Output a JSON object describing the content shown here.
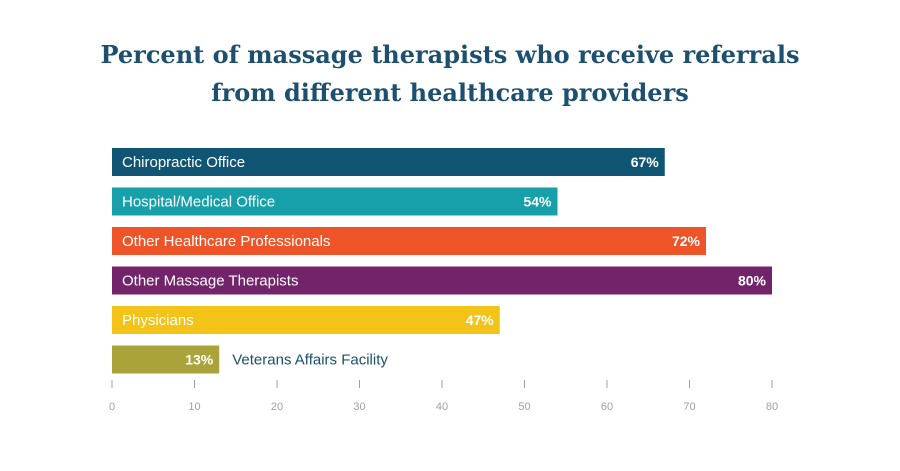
{
  "chart_data": {
    "type": "bar",
    "orientation": "horizontal",
    "title_lines": [
      "Percent of massage therapists who receive referrals",
      "from different healthcare providers"
    ],
    "categories": [
      "Chiropractic Office",
      "Hospital/Medical Office",
      "Other Healthcare Professionals",
      "Other Massage Therapists",
      "Physicians",
      "Veterans Affairs Facility"
    ],
    "values": [
      67,
      54,
      72,
      80,
      47,
      13
    ],
    "value_labels": [
      "67%",
      "54%",
      "72%",
      "80%",
      "47%",
      "13%"
    ],
    "colors": [
      "#105674",
      "#17a0aa",
      "#ef5428",
      "#73236a",
      "#f3c317",
      "#aaa33a"
    ],
    "xlim": [
      0,
      80
    ],
    "xticks": [
      0,
      10,
      20,
      30,
      40,
      50,
      60,
      70,
      80
    ],
    "grid": false,
    "legend": "none",
    "label_color_inside": "#ffffff",
    "label_color_outside": "#1d4f6e",
    "tick_color": "#a0a0a0"
  }
}
